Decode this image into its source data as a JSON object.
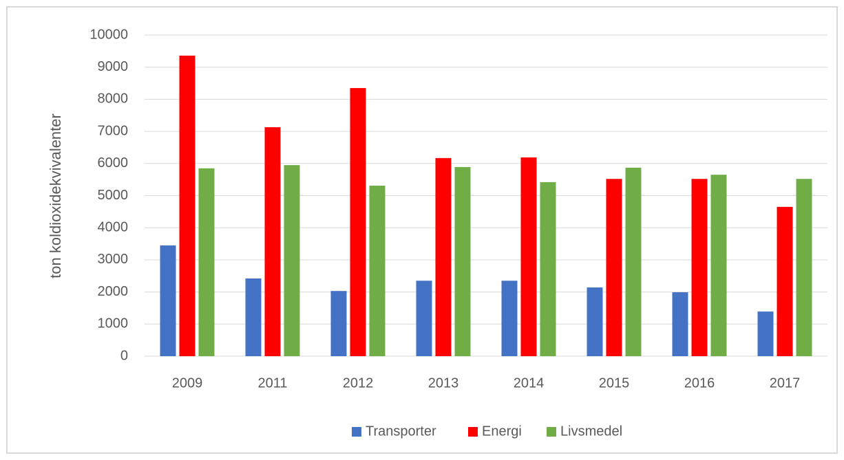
{
  "chart_data": {
    "type": "bar",
    "y_label": "ton koldioxidekvivalenter",
    "categories": [
      "2009",
      "2011",
      "2012",
      "2013",
      "2014",
      "2015",
      "2016",
      "2017"
    ],
    "series": [
      {
        "name": "Transporter",
        "color": "#4472c4",
        "values": [
          3450,
          2420,
          2030,
          2350,
          2350,
          2140,
          1990,
          1390
        ]
      },
      {
        "name": "Energi",
        "color": "#ff0000",
        "values": [
          9360,
          7130,
          8350,
          6170,
          6190,
          5520,
          5520,
          4650
        ]
      },
      {
        "name": "Livsmedel",
        "color": "#70ad47",
        "values": [
          5850,
          5950,
          5310,
          5890,
          5420,
          5870,
          5650,
          5520
        ]
      }
    ],
    "ylim": [
      0,
      10000
    ],
    "yticks": [
      0,
      1000,
      2000,
      3000,
      4000,
      5000,
      6000,
      7000,
      8000,
      9000,
      10000
    ],
    "grid": true,
    "legend": "bottom"
  }
}
